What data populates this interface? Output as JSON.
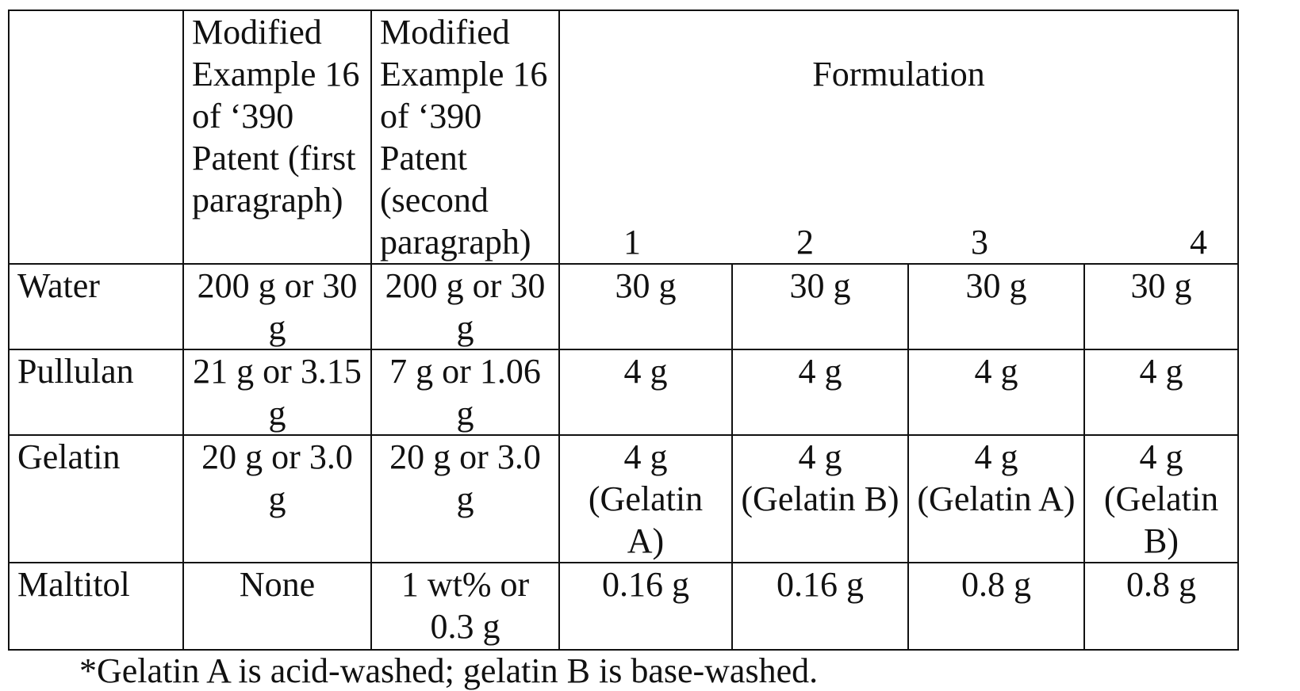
{
  "table": {
    "header": {
      "col1": "Modified Example 16 of ‘390 Patent (first paragraph)",
      "col2": "Modified Example 16 of ‘390 Patent (second paragraph)",
      "formulation_label": "Formulation",
      "formulation_numbers": [
        "1",
        "2",
        "3",
        "4"
      ]
    },
    "rows": [
      {
        "label": "Water",
        "ex1": "200 g or 30 g",
        "ex2": "200 g or 30 g",
        "f1": "30 g",
        "f2": "30 g",
        "f3": "30 g",
        "f4": "30 g"
      },
      {
        "label": "Pullulan",
        "ex1": "21 g or 3.15 g",
        "ex2": "7 g or 1.06 g",
        "f1": "4 g",
        "f2": "4 g",
        "f3": "4 g",
        "f4": "4 g"
      },
      {
        "label": "Gelatin",
        "ex1": "20 g or 3.0 g",
        "ex2": "20 g or 3.0 g",
        "f1": "4 g (Gelatin A)",
        "f2": "4 g (Gelatin B)",
        "f3": "4 g (Gelatin A)",
        "f4": "4 g (Gelatin B)"
      },
      {
        "label": "Maltitol",
        "ex1": "None",
        "ex2": "1 wt% or 0.3 g",
        "f1": "0.16 g",
        "f2": "0.16 g",
        "f3": "0.8 g",
        "f4": "0.8 g"
      }
    ]
  },
  "footnote": "*Gelatin A is acid-washed; gelatin B is base-washed."
}
